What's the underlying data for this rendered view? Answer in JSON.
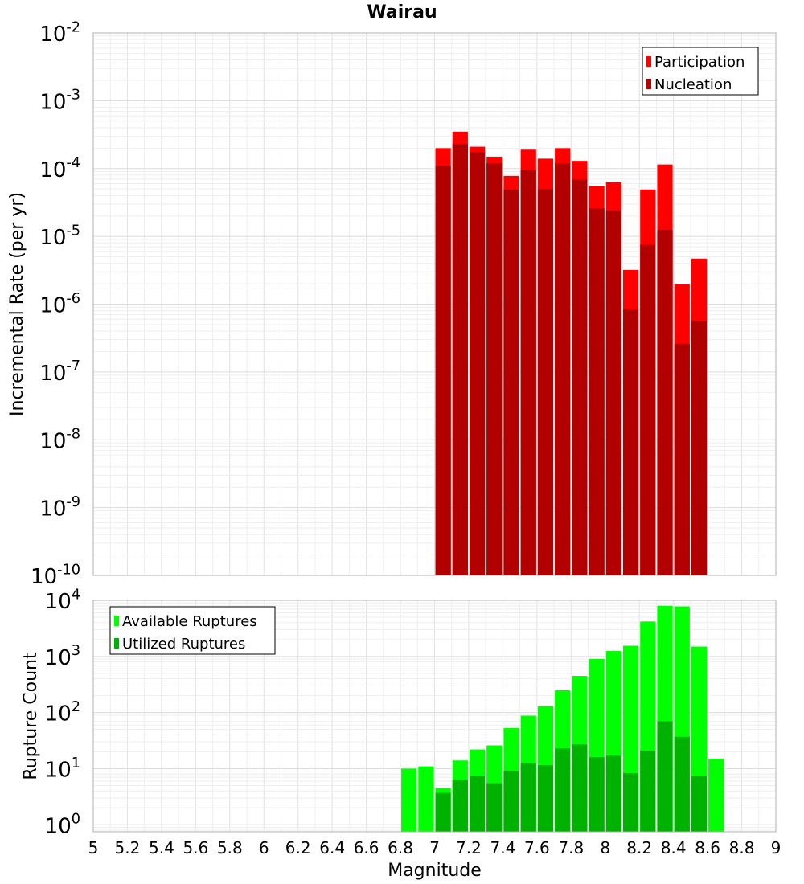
{
  "chart_data": [
    {
      "type": "bar",
      "title": "Wairau",
      "xlabel": "",
      "ylabel": "Incremental Rate (per yr)",
      "yscale": "log",
      "xlim": [
        5,
        9
      ],
      "ylim": [
        1e-10,
        0.01
      ],
      "y_tick_labels": [
        {
          "base": "10",
          "exp": "-10"
        },
        {
          "base": "10",
          "exp": "-9"
        },
        {
          "base": "10",
          "exp": "-8"
        },
        {
          "base": "10",
          "exp": "-7"
        },
        {
          "base": "10",
          "exp": "-6"
        },
        {
          "base": "10",
          "exp": "-5"
        },
        {
          "base": "10",
          "exp": "-4"
        },
        {
          "base": "10",
          "exp": "-3"
        },
        {
          "base": "10",
          "exp": "-2"
        }
      ],
      "grid": true,
      "legend_position": "top-right",
      "bar_width": 0.1,
      "series": [
        {
          "name": "Participation",
          "color": "#ff0000",
          "x": [
            7.0,
            7.1,
            7.2,
            7.3,
            7.4,
            7.5,
            7.6,
            7.7,
            7.8,
            7.9,
            8.0,
            8.1,
            8.2,
            8.3,
            8.4,
            8.5
          ],
          "values": [
            0.0002,
            0.00035,
            0.00021,
            0.00015,
            7.8e-05,
            0.00019,
            0.00014,
            0.0002,
            0.00013,
            5.6e-05,
            6.3e-05,
            3.2e-06,
            4.9e-05,
            0.000115,
            1.95e-06,
            4.7e-06
          ]
        },
        {
          "name": "Nucleation",
          "color": "#b20000",
          "x": [
            7.0,
            7.1,
            7.2,
            7.3,
            7.4,
            7.5,
            7.6,
            7.7,
            7.8,
            7.9,
            8.0,
            8.1,
            8.2,
            8.3,
            8.4,
            8.5
          ],
          "values": [
            0.00011,
            0.00023,
            0.000175,
            0.00012,
            4.9e-05,
            9.5e-05,
            5e-05,
            0.00012,
            6.9e-05,
            2.6e-05,
            2.4e-05,
            8.4e-07,
            7.5e-06,
            1.25e-05,
            2.6e-07,
            5.7e-07
          ]
        }
      ]
    },
    {
      "type": "bar",
      "title": "",
      "xlabel": "Magnitude",
      "ylabel": "Rupture Count",
      "yscale": "log",
      "xlim": [
        5,
        9
      ],
      "ylim": [
        0.75,
        10000
      ],
      "x_tick_labels": [
        "5",
        "5.2",
        "5.4",
        "5.6",
        "5.8",
        "6",
        "6.2",
        "6.4",
        "6.6",
        "6.8",
        "7",
        "7.2",
        "7.4",
        "7.6",
        "7.8",
        "8",
        "8.2",
        "8.4",
        "8.6",
        "8.8",
        "9"
      ],
      "y_tick_labels": [
        {
          "base": "10",
          "exp": "0"
        },
        {
          "base": "10",
          "exp": "1"
        },
        {
          "base": "10",
          "exp": "2"
        },
        {
          "base": "10",
          "exp": "3"
        },
        {
          "base": "10",
          "exp": "4"
        }
      ],
      "grid": true,
      "legend_position": "top-left",
      "bar_width": 0.1,
      "series": [
        {
          "name": "Available Ruptures",
          "color": "#00ff00",
          "x": [
            6.8,
            6.9,
            7.0,
            7.1,
            7.2,
            7.3,
            7.4,
            7.5,
            7.6,
            7.7,
            7.8,
            7.9,
            8.0,
            8.1,
            8.2,
            8.3,
            8.4,
            8.5,
            8.6
          ],
          "values": [
            10,
            11,
            4.5,
            14,
            22,
            26,
            53,
            88,
            130,
            250,
            450,
            900,
            1250,
            1550,
            4200,
            8000,
            7800,
            1500,
            15
          ]
        },
        {
          "name": "Utilized Ruptures",
          "color": "#00b200",
          "x": [
            7.0,
            7.1,
            7.2,
            7.3,
            7.4,
            7.5,
            7.6,
            7.7,
            7.8,
            7.9,
            8.0,
            8.1,
            8.2,
            8.3,
            8.4,
            8.5
          ],
          "values": [
            3.7,
            6.3,
            7.3,
            5.5,
            9.1,
            12.5,
            11.5,
            23,
            27,
            16,
            17,
            8.3,
            21,
            70,
            37,
            7.3
          ]
        }
      ]
    }
  ]
}
